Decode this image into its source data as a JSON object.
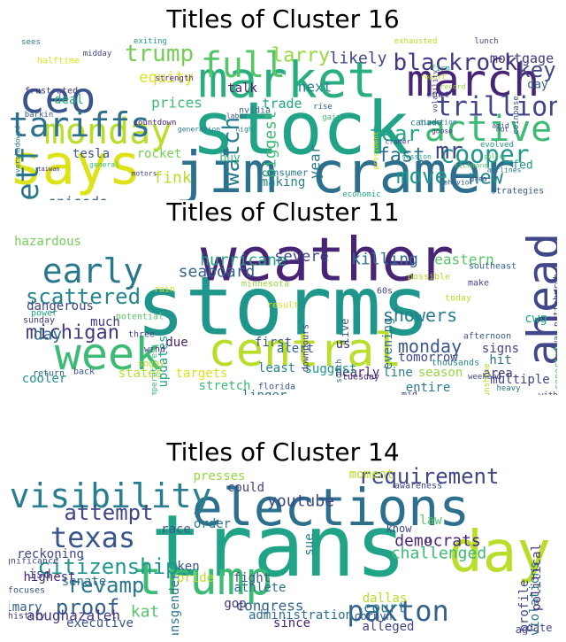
{
  "panels": [
    {
      "title": "Titles of Cluster 16",
      "words": [
        {
          "t": "stock",
          "c": "#20a386"
        },
        {
          "t": "jim cramer",
          "c": "#2d708e"
        },
        {
          "t": "says",
          "c": "#dde318"
        },
        {
          "t": "market",
          "c": "#29af7f"
        },
        {
          "t": "march",
          "c": "#482475"
        },
        {
          "t": "ceo",
          "c": "#39568c"
        },
        {
          "t": "monday",
          "c": "#b8de29"
        },
        {
          "t": "tariffs",
          "c": "#2d708e"
        },
        {
          "t": "active",
          "c": "#3cbb75"
        },
        {
          "t": "trillion",
          "c": "#404688"
        },
        {
          "t": "etf",
          "c": "#2a788e"
        },
        {
          "t": "full",
          "c": "#55c667"
        },
        {
          "t": "blackrock",
          "c": "#453781"
        },
        {
          "t": "cooper",
          "c": "#1f968b"
        },
        {
          "t": "trump",
          "c": "#73d055"
        },
        {
          "t": "watch",
          "c": "#287d8e"
        },
        {
          "t": "episode",
          "c": "#33638d"
        },
        {
          "t": "larry",
          "c": "#95d840"
        },
        {
          "t": "equity",
          "c": "#dde318"
        },
        {
          "t": "prices",
          "c": "#3cbb75"
        },
        {
          "t": "key",
          "c": "#404688"
        },
        {
          "t": "move",
          "c": "#1f968b"
        },
        {
          "t": "new",
          "c": "#25858e"
        },
        {
          "t": "fink",
          "c": "#b8de29"
        },
        {
          "t": "mr",
          "c": "#3f4788"
        },
        {
          "t": "fear",
          "c": "#20a386"
        },
        {
          "t": "fast",
          "c": "#2d708e"
        },
        {
          "t": "likely",
          "c": "#404688"
        },
        {
          "t": "year",
          "c": "#2a788e"
        },
        {
          "t": "biggest",
          "c": "#3cbb75"
        },
        {
          "t": "rocket",
          "c": "#73d055"
        },
        {
          "t": "deal",
          "c": "#29af7f"
        },
        {
          "t": "tesla",
          "c": "#39568c"
        },
        {
          "t": "fed",
          "c": "#1f968b"
        },
        {
          "t": "mortgage",
          "c": "#453781"
        },
        {
          "t": "next",
          "c": "#287d8e"
        },
        {
          "t": "trade",
          "c": "#20a386"
        },
        {
          "t": "making",
          "c": "#25858e"
        },
        {
          "t": "talk",
          "c": "#481f70"
        },
        {
          "t": "day",
          "c": "#33638d"
        },
        {
          "t": "strategies",
          "c": "#39568c"
        },
        {
          "t": "consumer",
          "c": "#2a788e"
        },
        {
          "t": "cnbc",
          "c": "#404688"
        },
        {
          "t": "buy",
          "c": "#3cbb75"
        },
        {
          "t": "nvidia",
          "c": "#33638d"
        },
        {
          "t": "canada",
          "c": "#287d8e"
        },
        {
          "t": "economic",
          "c": "#20a386"
        },
        {
          "t": "motors",
          "c": "#404688"
        },
        {
          "t": "frustrated",
          "c": "#453781"
        },
        {
          "t": "strength",
          "c": "#482475"
        },
        {
          "t": "exhausted",
          "c": "#b8de29"
        },
        {
          "t": "lunch",
          "c": "#404688"
        },
        {
          "t": "sees",
          "c": "#287d8e"
        },
        {
          "t": "halftime",
          "c": "#dde318"
        },
        {
          "t": "midday",
          "c": "#404688"
        },
        {
          "t": "exiting",
          "c": "#20a386"
        },
        {
          "t": "general",
          "c": "#3cbb75"
        },
        {
          "t": "taiwan",
          "c": "#482475"
        },
        {
          "t": "overshadowed",
          "c": "#2d708e"
        },
        {
          "t": "evolved",
          "c": "#1f968b"
        },
        {
          "t": "hut",
          "c": "#404688"
        },
        {
          "t": "policy",
          "c": "#55c667"
        },
        {
          "t": "coinbase",
          "c": "#39568c"
        },
        {
          "t": "firm",
          "c": "#20a386"
        },
        {
          "t": "report",
          "c": "#b8de29"
        },
        {
          "t": "record",
          "c": "#95d840"
        },
        {
          "t": "rise",
          "c": "#33638d"
        },
        {
          "t": "gain",
          "c": "#3cbb75"
        },
        {
          "t": "labor",
          "c": "#39568c"
        },
        {
          "t": "high",
          "c": "#25858e"
        },
        {
          "t": "countdown",
          "c": "#481f70"
        },
        {
          "t": "generation",
          "c": "#287d8e"
        },
        {
          "t": "session",
          "c": "#20a386"
        },
        {
          "t": "cramer",
          "c": "#404688"
        },
        {
          "t": "direction",
          "c": "#2a788e"
        },
        {
          "t": "volatility",
          "c": "#453781"
        },
        {
          "t": "amid",
          "c": "#39568c"
        },
        {
          "t": "area",
          "c": "#404688"
        },
        {
          "t": "behavior",
          "c": "#33638d"
        },
        {
          "t": "richmond",
          "c": "#55c667"
        },
        {
          "t": "airlines",
          "c": "#2a788e"
        },
        {
          "t": "goose",
          "c": "#453781"
        },
        {
          "t": "barkin",
          "c": "#39568c"
        },
        {
          "t": "president",
          "c": "#dde318"
        }
      ]
    },
    {
      "title": "Titles of Cluster 11",
      "words": [
        {
          "t": "storms",
          "c": "#1f968b"
        },
        {
          "t": "weather",
          "c": "#482475"
        },
        {
          "t": "central",
          "c": "#b8de29"
        },
        {
          "t": "week",
          "c": "#3cbb75"
        },
        {
          "t": "ahead",
          "c": "#3f4788"
        },
        {
          "t": "early",
          "c": "#2a788e"
        },
        {
          "t": "scattered",
          "c": "#25858e"
        },
        {
          "t": "showers",
          "c": "#287d8e"
        },
        {
          "t": "monday",
          "c": "#39568c"
        },
        {
          "t": "michigan",
          "c": "#453781"
        },
        {
          "t": "day",
          "c": "#2d708e"
        },
        {
          "t": "hurricane",
          "c": "#20a386"
        },
        {
          "t": "seaboard",
          "c": "#33638d"
        },
        {
          "t": "severe",
          "c": "#404688"
        },
        {
          "t": "killing",
          "c": "#2d708e"
        },
        {
          "t": "eastern",
          "c": "#55c667"
        },
        {
          "t": "hazardous",
          "c": "#73d055"
        },
        {
          "t": "dangerous",
          "c": "#3f4788"
        },
        {
          "t": "cooler",
          "c": "#1f968b"
        },
        {
          "t": "much",
          "c": "#453781"
        },
        {
          "t": "states",
          "c": "#b8de29"
        },
        {
          "t": "targets",
          "c": "#dde318"
        },
        {
          "t": "due",
          "c": "#482475"
        },
        {
          "t": "updates",
          "c": "#20a386"
        },
        {
          "t": "first",
          "c": "#39568c"
        },
        {
          "t": "least",
          "c": "#25858e"
        },
        {
          "t": "stretch",
          "c": "#3cbb75"
        },
        {
          "t": "linger",
          "c": "#2d708e"
        },
        {
          "t": "alert",
          "c": "#33638d"
        },
        {
          "t": "nearly",
          "c": "#482475"
        },
        {
          "t": "suggest",
          "c": "#1f968b"
        },
        {
          "t": "line",
          "c": "#287d8e"
        },
        {
          "t": "season",
          "c": "#95d840"
        },
        {
          "t": "multiple",
          "c": "#404688"
        },
        {
          "t": "entire",
          "c": "#2a788e"
        },
        {
          "t": "tomorrow",
          "c": "#3f4788"
        },
        {
          "t": "cwg",
          "c": "#20a386"
        },
        {
          "t": "signs",
          "c": "#404688"
        },
        {
          "t": "hit",
          "c": "#2d708e"
        },
        {
          "t": "area",
          "c": "#453781"
        },
        {
          "t": "evening",
          "c": "#2d708e"
        },
        {
          "t": "live",
          "c": "#39568c"
        },
        {
          "t": "us",
          "c": "#453781"
        },
        {
          "t": "heavy",
          "c": "#2a788e"
        },
        {
          "t": "morning",
          "c": "#453781"
        },
        {
          "t": "weekend",
          "c": "#404688"
        },
        {
          "t": "sunshine",
          "c": "#b8de29"
        },
        {
          "t": "deaths",
          "c": "#3cbb75"
        },
        {
          "t": "thousands",
          "c": "#25858e"
        },
        {
          "t": "tuesday",
          "c": "#482475"
        },
        {
          "t": "florida",
          "c": "#39568c"
        },
        {
          "t": "rain",
          "c": "#dde318"
        },
        {
          "t": "power",
          "c": "#20a386"
        },
        {
          "t": "potential",
          "c": "#55c667"
        },
        {
          "t": "sunday",
          "c": "#453781"
        },
        {
          "t": "soggy",
          "c": "#b8de29"
        },
        {
          "t": "return",
          "c": "#33638d"
        },
        {
          "t": "back",
          "c": "#39568c"
        },
        {
          "t": "pittsburgh",
          "c": "#404688"
        },
        {
          "t": "southeast",
          "c": "#33638d"
        },
        {
          "t": "minnesota",
          "c": "#95d840"
        },
        {
          "t": "three",
          "c": "#3f4788"
        },
        {
          "t": "wind",
          "c": "#482475"
        },
        {
          "t": "temperatures",
          "c": "#3cbb75"
        },
        {
          "t": "downpours",
          "c": "#453781"
        },
        {
          "t": "afternoon",
          "c": "#39568c"
        },
        {
          "t": "today",
          "c": "#b8de29"
        },
        {
          "t": "mid",
          "c": "#404688"
        },
        {
          "t": "way",
          "c": "#33638d"
        },
        {
          "t": "reported",
          "c": "#55c667"
        },
        {
          "t": "without",
          "c": "#453781"
        },
        {
          "t": "make",
          "c": "#404688"
        },
        {
          "t": "60s",
          "c": "#3f4788"
        },
        {
          "t": "result",
          "c": "#dde318"
        },
        {
          "t": "possible",
          "c": "#b8de29"
        },
        {
          "t": "south",
          "c": "#2d708e"
        }
      ]
    },
    {
      "title": "Titles of Cluster 14",
      "words": [
        {
          "t": "trans",
          "c": "#20a386"
        },
        {
          "t": "elections",
          "c": "#2d708e"
        },
        {
          "t": "day",
          "c": "#b8de29"
        },
        {
          "t": "trump",
          "c": "#3cbb75"
        },
        {
          "t": "visibility",
          "c": "#287d8e"
        },
        {
          "t": "paxton",
          "c": "#33638d"
        },
        {
          "t": "texas",
          "c": "#39568c"
        },
        {
          "t": "attempt",
          "c": "#3f4788"
        },
        {
          "t": "citizenship",
          "c": "#1f968b"
        },
        {
          "t": "revamp",
          "c": "#2a788e"
        },
        {
          "t": "proof",
          "c": "#33638d"
        },
        {
          "t": "requirement",
          "c": "#404688"
        },
        {
          "t": "challenged",
          "c": "#3cbb75"
        },
        {
          "t": "democrats",
          "c": "#482475"
        },
        {
          "t": "youtube",
          "c": "#404688"
        },
        {
          "t": "court",
          "c": "#287d8e"
        },
        {
          "t": "abughazaleh",
          "c": "#453781"
        },
        {
          "t": "kat",
          "c": "#55c667"
        },
        {
          "t": "congress",
          "c": "#33638d"
        },
        {
          "t": "administration",
          "c": "#2d708e"
        },
        {
          "t": "alleged",
          "c": "#404688"
        },
        {
          "t": "dallas",
          "c": "#b8de29"
        },
        {
          "t": "cornyn",
          "c": "#39568c"
        },
        {
          "t": "violations",
          "c": "#2a788e"
        },
        {
          "t": "profile",
          "c": "#404688"
        },
        {
          "t": "political",
          "c": "#453781"
        },
        {
          "t": "presses",
          "c": "#95d840"
        },
        {
          "t": "could",
          "c": "#404688"
        },
        {
          "t": "moment",
          "c": "#b8de29"
        },
        {
          "t": "race",
          "c": "#39568c"
        },
        {
          "t": "reckoning",
          "c": "#404688"
        },
        {
          "t": "primary",
          "c": "#33638d"
        },
        {
          "t": "highest",
          "c": "#482475"
        },
        {
          "t": "senate",
          "c": "#2d708e"
        },
        {
          "t": "executive",
          "c": "#39568c"
        },
        {
          "t": "order",
          "c": "#2a788e"
        },
        {
          "t": "sue",
          "c": "#2a788e"
        },
        {
          "t": "law",
          "c": "#55c667"
        },
        {
          "t": "know",
          "c": "#404688"
        },
        {
          "t": "fight",
          "c": "#39568c"
        },
        {
          "t": "athlete",
          "c": "#2d708e"
        },
        {
          "t": "gop",
          "c": "#453781"
        },
        {
          "t": "since",
          "c": "#482475"
        },
        {
          "t": "ken",
          "c": "#39568c"
        },
        {
          "t": "pride",
          "c": "#b8de29"
        },
        {
          "t": "transgender",
          "c": "#2a788e"
        },
        {
          "t": "isd",
          "c": "#3f4788"
        },
        {
          "t": "significance",
          "c": "#404688"
        },
        {
          "t": "focuses",
          "c": "#39568c"
        },
        {
          "t": "history",
          "c": "#453781"
        },
        {
          "t": "awareness",
          "c": "#404688"
        },
        {
          "t": "international",
          "c": "#33638d"
        },
        {
          "t": "date",
          "c": "#3f4788"
        },
        {
          "t": "ag",
          "c": "#404688"
        },
        {
          "t": "u",
          "c": "#453781"
        }
      ]
    }
  ]
}
